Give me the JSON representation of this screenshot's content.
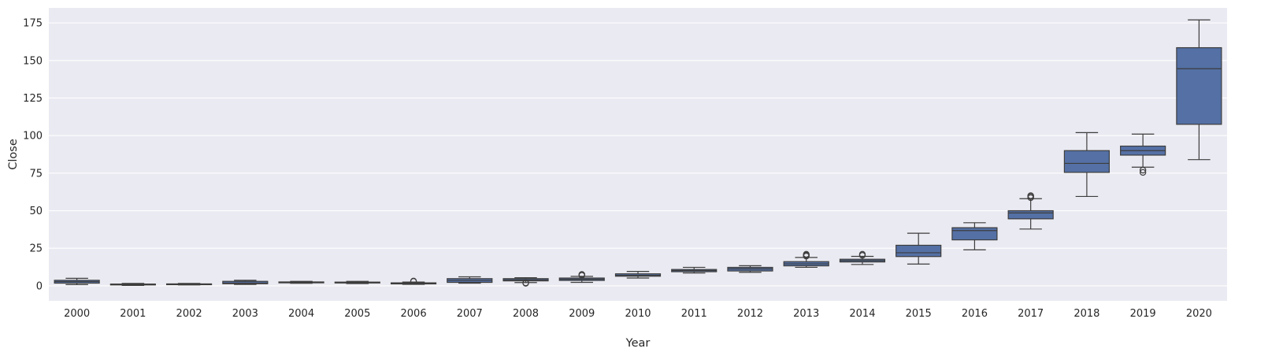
{
  "chart_data": {
    "type": "box",
    "xlabel": "Year",
    "ylabel": "Close",
    "ylim": [
      -10,
      185
    ],
    "yticks": [
      0,
      25,
      50,
      75,
      100,
      125,
      150,
      175
    ],
    "grid": true,
    "colors": {
      "box_fill": "#5470a5",
      "line": "#3d3d3d",
      "background": "#eaeaf2",
      "grid": "#ffffff"
    },
    "categories": [
      "2000",
      "2001",
      "2002",
      "2003",
      "2004",
      "2005",
      "2006",
      "2007",
      "2008",
      "2009",
      "2010",
      "2011",
      "2012",
      "2013",
      "2014",
      "2015",
      "2016",
      "2017",
      "2018",
      "2019",
      "2020"
    ],
    "boxes": [
      {
        "whisker_low": 0.8,
        "q1": 1.8,
        "median": 2.8,
        "q3": 3.7,
        "whisker_high": 5.0,
        "outliers": []
      },
      {
        "whisker_low": 0.3,
        "q1": 0.6,
        "median": 0.8,
        "q3": 1.2,
        "whisker_high": 1.6,
        "outliers": []
      },
      {
        "whisker_low": 0.6,
        "q1": 0.9,
        "median": 1.1,
        "q3": 1.3,
        "whisker_high": 1.6,
        "outliers": []
      },
      {
        "whisker_low": 0.9,
        "q1": 1.4,
        "median": 1.8,
        "q3": 3.0,
        "whisker_high": 3.7,
        "outliers": []
      },
      {
        "whisker_low": 1.7,
        "q1": 2.0,
        "median": 2.3,
        "q3": 2.6,
        "whisker_high": 3.0,
        "outliers": []
      },
      {
        "whisker_low": 1.5,
        "q1": 1.9,
        "median": 2.2,
        "q3": 2.5,
        "whisker_high": 3.0,
        "outliers": []
      },
      {
        "whisker_low": 1.0,
        "q1": 1.3,
        "median": 1.7,
        "q3": 2.0,
        "whisker_high": 2.5,
        "outliers": [
          3.2,
          3.0
        ]
      },
      {
        "whisker_low": 1.8,
        "q1": 2.3,
        "median": 3.6,
        "q3": 4.8,
        "whisker_high": 6.0,
        "outliers": []
      },
      {
        "whisker_low": 2.2,
        "q1": 3.3,
        "median": 4.0,
        "q3": 4.8,
        "whisker_high": 5.4,
        "outliers": [
          2.0,
          1.7
        ]
      },
      {
        "whisker_low": 2.3,
        "q1": 3.6,
        "median": 4.4,
        "q3": 5.2,
        "whisker_high": 6.3,
        "outliers": [
          7.0,
          7.6
        ]
      },
      {
        "whisker_low": 5.2,
        "q1": 6.4,
        "median": 7.0,
        "q3": 8.0,
        "whisker_high": 9.6,
        "outliers": []
      },
      {
        "whisker_low": 8.5,
        "q1": 9.4,
        "median": 10.2,
        "q3": 10.9,
        "whisker_high": 12.3,
        "outliers": []
      },
      {
        "whisker_low": 9.0,
        "q1": 9.9,
        "median": 11.3,
        "q3": 12.3,
        "whisker_high": 13.4,
        "outliers": []
      },
      {
        "whisker_low": 12.3,
        "q1": 13.3,
        "median": 14.6,
        "q3": 16.1,
        "whisker_high": 18.9,
        "outliers": [
          19.8,
          20.4,
          21.0
        ]
      },
      {
        "whisker_low": 14.2,
        "q1": 15.9,
        "median": 16.8,
        "q3": 17.7,
        "whisker_high": 19.6,
        "outliers": [
          20.3,
          21.0
        ]
      },
      {
        "whisker_low": 14.5,
        "q1": 19.5,
        "median": 22.0,
        "q3": 27.0,
        "whisker_high": 35.0,
        "outliers": []
      },
      {
        "whisker_low": 24.0,
        "q1": 30.6,
        "median": 36.8,
        "q3": 38.7,
        "whisker_high": 42.0,
        "outliers": []
      },
      {
        "whisker_low": 37.8,
        "q1": 44.6,
        "median": 48.5,
        "q3": 50.0,
        "whisker_high": 58.0,
        "outliers": [
          58.7,
          59.5,
          60.0
        ]
      },
      {
        "whisker_low": 59.5,
        "q1": 75.5,
        "median": 81.5,
        "q3": 90.0,
        "whisker_high": 102.0,
        "outliers": []
      },
      {
        "whisker_low": 79.0,
        "q1": 87.0,
        "median": 90.0,
        "q3": 93.0,
        "whisker_high": 101.0,
        "outliers": [
          75.5,
          77.0
        ]
      },
      {
        "whisker_low": 84.0,
        "q1": 107.5,
        "median": 144.5,
        "q3": 158.5,
        "whisker_high": 177.0,
        "outliers": []
      }
    ]
  }
}
